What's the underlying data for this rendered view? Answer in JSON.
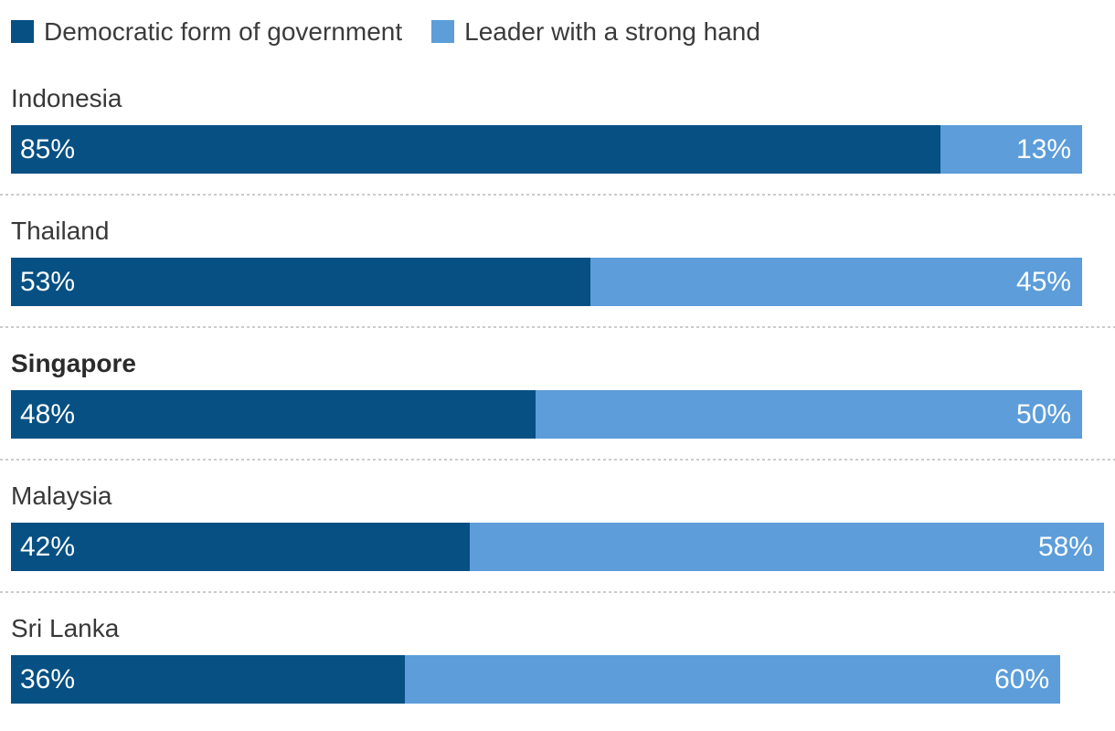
{
  "colors": {
    "democratic": "#065083",
    "strong_hand": "#5C9DDA",
    "label_text": "#383838",
    "bar_text": "#ffffff",
    "separator": "#cbcbcb"
  },
  "legend": {
    "items": [
      {
        "label": "Democratic form of government",
        "color": "#065083"
      },
      {
        "label": "Leader with a strong hand",
        "color": "#5C9DDA"
      }
    ]
  },
  "rows": [
    {
      "country": "Indonesia",
      "democratic_pct": 85,
      "democratic_label": "85%",
      "strong_pct": 13,
      "strong_label": "13%",
      "highlighted": false
    },
    {
      "country": "Thailand",
      "democratic_pct": 53,
      "democratic_label": "53%",
      "strong_pct": 45,
      "strong_label": "45%",
      "highlighted": false
    },
    {
      "country": "Singapore",
      "democratic_pct": 48,
      "democratic_label": "48%",
      "strong_pct": 50,
      "strong_label": "50%",
      "highlighted": true
    },
    {
      "country": "Malaysia",
      "democratic_pct": 42,
      "democratic_label": "42%",
      "strong_pct": 58,
      "strong_label": "58%",
      "highlighted": false
    },
    {
      "country": "Sri Lanka",
      "democratic_pct": 36,
      "democratic_label": "36%",
      "strong_pct": 60,
      "strong_label": "60%",
      "highlighted": false
    }
  ],
  "chart_data": {
    "type": "bar",
    "orientation": "horizontal",
    "stacked": true,
    "categories": [
      "Indonesia",
      "Thailand",
      "Singapore",
      "Malaysia",
      "Sri Lanka"
    ],
    "series": [
      {
        "name": "Democratic form of government",
        "values": [
          85,
          53,
          48,
          42,
          36
        ],
        "color": "#065083"
      },
      {
        "name": "Leader with a strong hand",
        "values": [
          13,
          45,
          50,
          58,
          60
        ],
        "color": "#5C9DDA"
      }
    ],
    "value_suffix": "%",
    "xlim": [
      0,
      100
    ],
    "grid": false,
    "legend_position": "top",
    "data_labels": "inside",
    "highlighted_category": "Singapore"
  }
}
